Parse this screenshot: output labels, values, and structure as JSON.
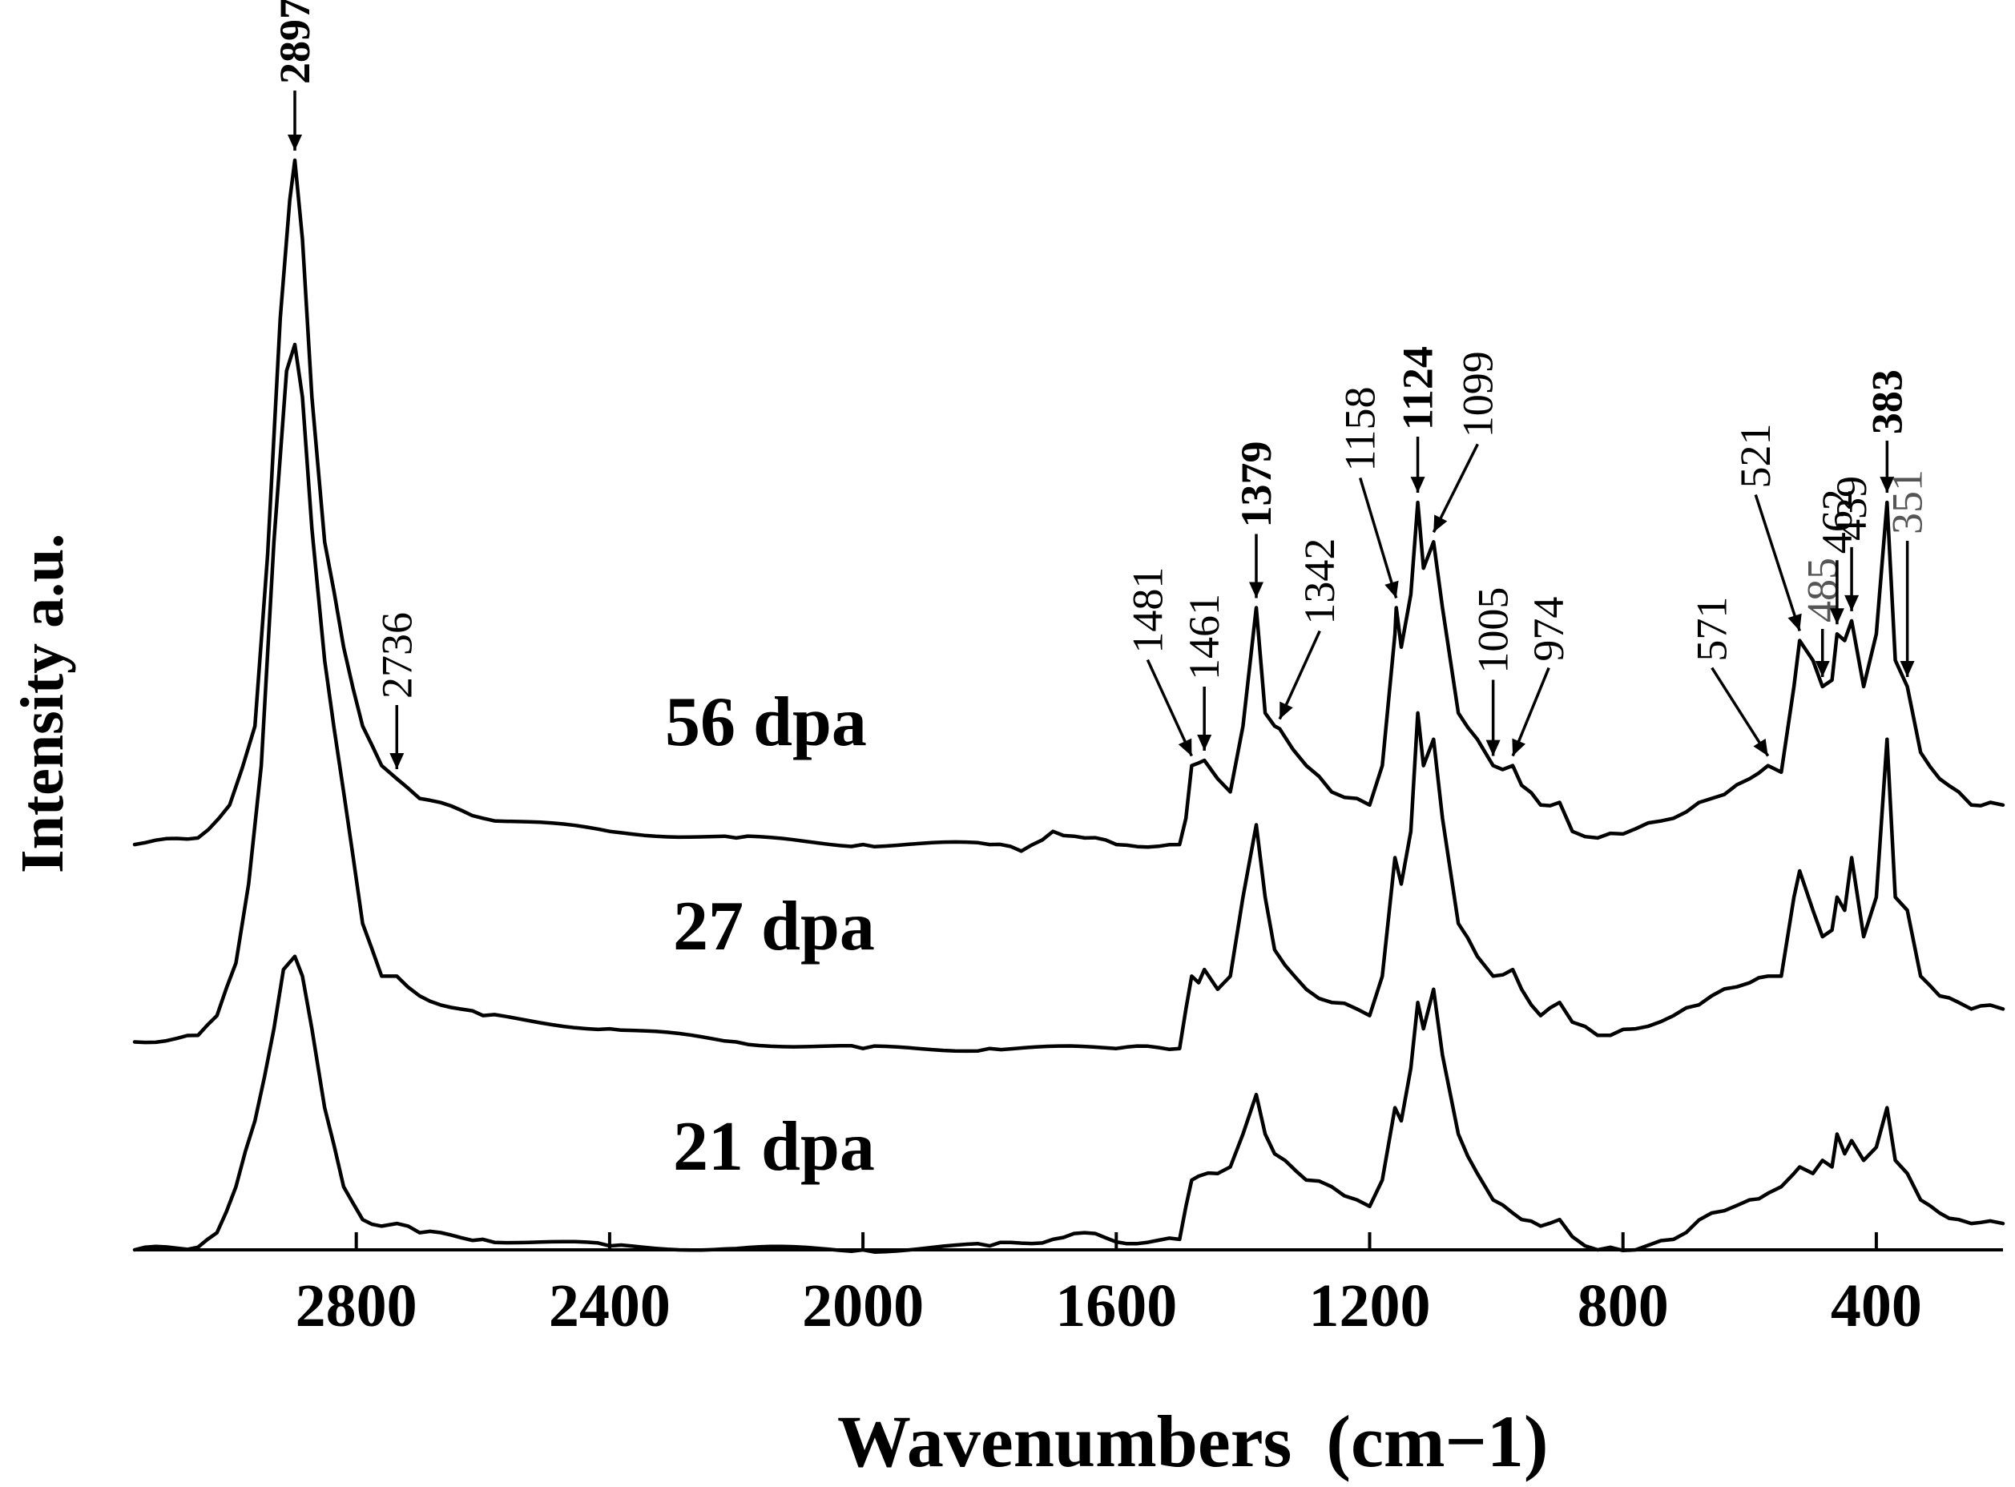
{
  "chart_data": {
    "type": "line",
    "title": "",
    "xlabel": "Wavenumbers",
    "xlabel_unit": "(cm−1)",
    "ylabel": "Intensity  a.u.",
    "xlim": [
      3150,
      200
    ],
    "x_reversed": true,
    "x_ticks": [
      2800,
      2400,
      2000,
      1600,
      1200,
      800,
      400
    ],
    "y_ticks_shown": false,
    "grid": false,
    "legend": "none",
    "series": [
      {
        "name": "56 dpa",
        "baseline": 660,
        "points": [
          [
            3150,
            660
          ],
          [
            3050,
            655
          ],
          [
            3000,
            630
          ],
          [
            2960,
            570
          ],
          [
            2940,
            440
          ],
          [
            2920,
            260
          ],
          [
            2905,
            170
          ],
          [
            2897,
            140
          ],
          [
            2885,
            200
          ],
          [
            2870,
            320
          ],
          [
            2850,
            430
          ],
          [
            2820,
            510
          ],
          [
            2790,
            570
          ],
          [
            2760,
            600
          ],
          [
            2736,
            610
          ],
          [
            2700,
            625
          ],
          [
            2600,
            640
          ],
          [
            2400,
            650
          ],
          [
            2200,
            655
          ],
          [
            2000,
            660
          ],
          [
            1800,
            660
          ],
          [
            1750,
            665
          ],
          [
            1700,
            650
          ],
          [
            1650,
            655
          ],
          [
            1600,
            660
          ],
          [
            1500,
            660
          ],
          [
            1490,
            640
          ],
          [
            1481,
            600
          ],
          [
            1470,
            598
          ],
          [
            1461,
            596
          ],
          [
            1440,
            610
          ],
          [
            1420,
            620
          ],
          [
            1400,
            570
          ],
          [
            1379,
            480
          ],
          [
            1365,
            560
          ],
          [
            1350,
            570
          ],
          [
            1342,
            572
          ],
          [
            1300,
            600
          ],
          [
            1260,
            620
          ],
          [
            1220,
            625
          ],
          [
            1200,
            630
          ],
          [
            1180,
            600
          ],
          [
            1160,
            500
          ],
          [
            1158,
            480
          ],
          [
            1150,
            510
          ],
          [
            1135,
            470
          ],
          [
            1124,
            400
          ],
          [
            1115,
            450
          ],
          [
            1099,
            430
          ],
          [
            1085,
            480
          ],
          [
            1060,
            560
          ],
          [
            1030,
            580
          ],
          [
            1005,
            600
          ],
          [
            990,
            603
          ],
          [
            974,
            600
          ],
          [
            960,
            615
          ],
          [
            930,
            630
          ],
          [
            900,
            628
          ],
          [
            880,
            650
          ],
          [
            840,
            655
          ],
          [
            780,
            648
          ],
          [
            720,
            640
          ],
          [
            660,
            625
          ],
          [
            600,
            610
          ],
          [
            571,
            600
          ],
          [
            550,
            605
          ],
          [
            530,
            540
          ],
          [
            521,
            505
          ],
          [
            500,
            520
          ],
          [
            485,
            540
          ],
          [
            470,
            535
          ],
          [
            462,
            500
          ],
          [
            450,
            505
          ],
          [
            439,
            490
          ],
          [
            420,
            540
          ],
          [
            400,
            500
          ],
          [
            383,
            400
          ],
          [
            370,
            520
          ],
          [
            351,
            540
          ],
          [
            330,
            590
          ],
          [
            300,
            610
          ],
          [
            270,
            620
          ],
          [
            250,
            630
          ],
          [
            220,
            628
          ],
          [
            200,
            630
          ]
        ]
      },
      {
        "name": "27 dpa",
        "baseline": 810,
        "points": [
          [
            3150,
            810
          ],
          [
            3050,
            805
          ],
          [
            3020,
            790
          ],
          [
            2990,
            750
          ],
          [
            2970,
            690
          ],
          [
            2950,
            600
          ],
          [
            2930,
            430
          ],
          [
            2910,
            300
          ],
          [
            2897,
            280
          ],
          [
            2885,
            320
          ],
          [
            2870,
            420
          ],
          [
            2850,
            520
          ],
          [
            2820,
            620
          ],
          [
            2790,
            720
          ],
          [
            2760,
            760
          ],
          [
            2736,
            760
          ],
          [
            2700,
            775
          ],
          [
            2600,
            790
          ],
          [
            2400,
            800
          ],
          [
            2200,
            810
          ],
          [
            2000,
            815
          ],
          [
            1800,
            815
          ],
          [
            1600,
            815
          ],
          [
            1500,
            815
          ],
          [
            1490,
            785
          ],
          [
            1481,
            760
          ],
          [
            1470,
            765
          ],
          [
            1461,
            755
          ],
          [
            1440,
            770
          ],
          [
            1420,
            760
          ],
          [
            1400,
            700
          ],
          [
            1379,
            645
          ],
          [
            1365,
            700
          ],
          [
            1350,
            740
          ],
          [
            1300,
            770
          ],
          [
            1260,
            780
          ],
          [
            1220,
            785
          ],
          [
            1200,
            790
          ],
          [
            1180,
            760
          ],
          [
            1160,
            670
          ],
          [
            1150,
            690
          ],
          [
            1135,
            650
          ],
          [
            1124,
            560
          ],
          [
            1115,
            600
          ],
          [
            1099,
            580
          ],
          [
            1085,
            640
          ],
          [
            1060,
            720
          ],
          [
            1030,
            745
          ],
          [
            1005,
            760
          ],
          [
            974,
            755
          ],
          [
            960,
            770
          ],
          [
            930,
            790
          ],
          [
            900,
            780
          ],
          [
            880,
            795
          ],
          [
            840,
            805
          ],
          [
            780,
            800
          ],
          [
            720,
            790
          ],
          [
            660,
            775
          ],
          [
            600,
            765
          ],
          [
            571,
            760
          ],
          [
            550,
            760
          ],
          [
            530,
            700
          ],
          [
            521,
            680
          ],
          [
            500,
            710
          ],
          [
            485,
            730
          ],
          [
            470,
            725
          ],
          [
            462,
            700
          ],
          [
            450,
            710
          ],
          [
            439,
            670
          ],
          [
            420,
            730
          ],
          [
            400,
            700
          ],
          [
            383,
            580
          ],
          [
            370,
            700
          ],
          [
            351,
            710
          ],
          [
            330,
            760
          ],
          [
            300,
            775
          ],
          [
            270,
            780
          ],
          [
            250,
            785
          ],
          [
            220,
            782
          ],
          [
            200,
            785
          ]
        ]
      },
      {
        "name": "21 dpa",
        "baseline": 968,
        "points": [
          [
            3150,
            968
          ],
          [
            3050,
            966
          ],
          [
            3020,
            955
          ],
          [
            2990,
            920
          ],
          [
            2960,
            870
          ],
          [
            2930,
            800
          ],
          [
            2915,
            755
          ],
          [
            2897,
            745
          ],
          [
            2885,
            760
          ],
          [
            2870,
            800
          ],
          [
            2850,
            860
          ],
          [
            2820,
            920
          ],
          [
            2790,
            945
          ],
          [
            2760,
            950
          ],
          [
            2736,
            948
          ],
          [
            2700,
            955
          ],
          [
            2600,
            960
          ],
          [
            2400,
            965
          ],
          [
            2200,
            967
          ],
          [
            2000,
            968
          ],
          [
            1800,
            965
          ],
          [
            1700,
            960
          ],
          [
            1650,
            955
          ],
          [
            1600,
            962
          ],
          [
            1500,
            960
          ],
          [
            1490,
            935
          ],
          [
            1481,
            915
          ],
          [
            1470,
            912
          ],
          [
            1440,
            910
          ],
          [
            1420,
            905
          ],
          [
            1400,
            880
          ],
          [
            1379,
            850
          ],
          [
            1365,
            880
          ],
          [
            1350,
            895
          ],
          [
            1300,
            915
          ],
          [
            1260,
            920
          ],
          [
            1220,
            930
          ],
          [
            1200,
            935
          ],
          [
            1180,
            915
          ],
          [
            1160,
            860
          ],
          [
            1150,
            870
          ],
          [
            1135,
            830
          ],
          [
            1124,
            780
          ],
          [
            1115,
            800
          ],
          [
            1099,
            770
          ],
          [
            1085,
            820
          ],
          [
            1060,
            880
          ],
          [
            1030,
            910
          ],
          [
            1005,
            930
          ],
          [
            974,
            940
          ],
          [
            960,
            945
          ],
          [
            930,
            950
          ],
          [
            900,
            945
          ],
          [
            880,
            958
          ],
          [
            840,
            968
          ],
          [
            780,
            968
          ],
          [
            720,
            960
          ],
          [
            660,
            940
          ],
          [
            600,
            930
          ],
          [
            571,
            925
          ],
          [
            550,
            920
          ],
          [
            530,
            910
          ],
          [
            521,
            905
          ],
          [
            500,
            910
          ],
          [
            485,
            900
          ],
          [
            470,
            905
          ],
          [
            462,
            880
          ],
          [
            450,
            895
          ],
          [
            439,
            885
          ],
          [
            420,
            900
          ],
          [
            400,
            890
          ],
          [
            383,
            860
          ],
          [
            370,
            900
          ],
          [
            351,
            910
          ],
          [
            330,
            930
          ],
          [
            300,
            940
          ],
          [
            270,
            945
          ],
          [
            250,
            948
          ],
          [
            220,
            946
          ],
          [
            200,
            948
          ]
        ]
      }
    ],
    "annotations": [
      {
        "text": "2897",
        "x": 2897,
        "arrow": "vertical",
        "bold": true
      },
      {
        "text": "2736",
        "x": 2736,
        "arrow": "vertical",
        "bold": false
      },
      {
        "text": "1481",
        "x": 1481,
        "arrow": "diagonal-left",
        "bold": false
      },
      {
        "text": "1461",
        "x": 1461,
        "arrow": "vertical",
        "bold": false
      },
      {
        "text": "1379",
        "x": 1379,
        "arrow": "vertical",
        "bold": true
      },
      {
        "text": "1342",
        "x": 1342,
        "arrow": "diagonal-right",
        "bold": false
      },
      {
        "text": "1158",
        "x": 1158,
        "arrow": "diagonal-left",
        "bold": false
      },
      {
        "text": "1124",
        "x": 1124,
        "arrow": "vertical",
        "bold": true
      },
      {
        "text": "1099",
        "x": 1099,
        "arrow": "diagonal-right",
        "bold": false
      },
      {
        "text": "1005",
        "x": 1005,
        "arrow": "vertical",
        "bold": false
      },
      {
        "text": "974",
        "x": 974,
        "arrow": "diagonal-right",
        "bold": false
      },
      {
        "text": "571",
        "x": 571,
        "arrow": "diagonal-left",
        "bold": false
      },
      {
        "text": "521",
        "x": 521,
        "arrow": "diagonal-left",
        "bold": false
      },
      {
        "text": "485",
        "x": 485,
        "arrow": "vertical",
        "bold": false,
        "grey": true
      },
      {
        "text": "462",
        "x": 462,
        "arrow": "vertical",
        "bold": false
      },
      {
        "text": "439",
        "x": 439,
        "arrow": "vertical",
        "bold": false
      },
      {
        "text": "383",
        "x": 383,
        "arrow": "vertical",
        "bold": true
      },
      {
        "text": "351",
        "x": 351,
        "arrow": "vertical",
        "bold": false,
        "grey": true
      }
    ]
  }
}
